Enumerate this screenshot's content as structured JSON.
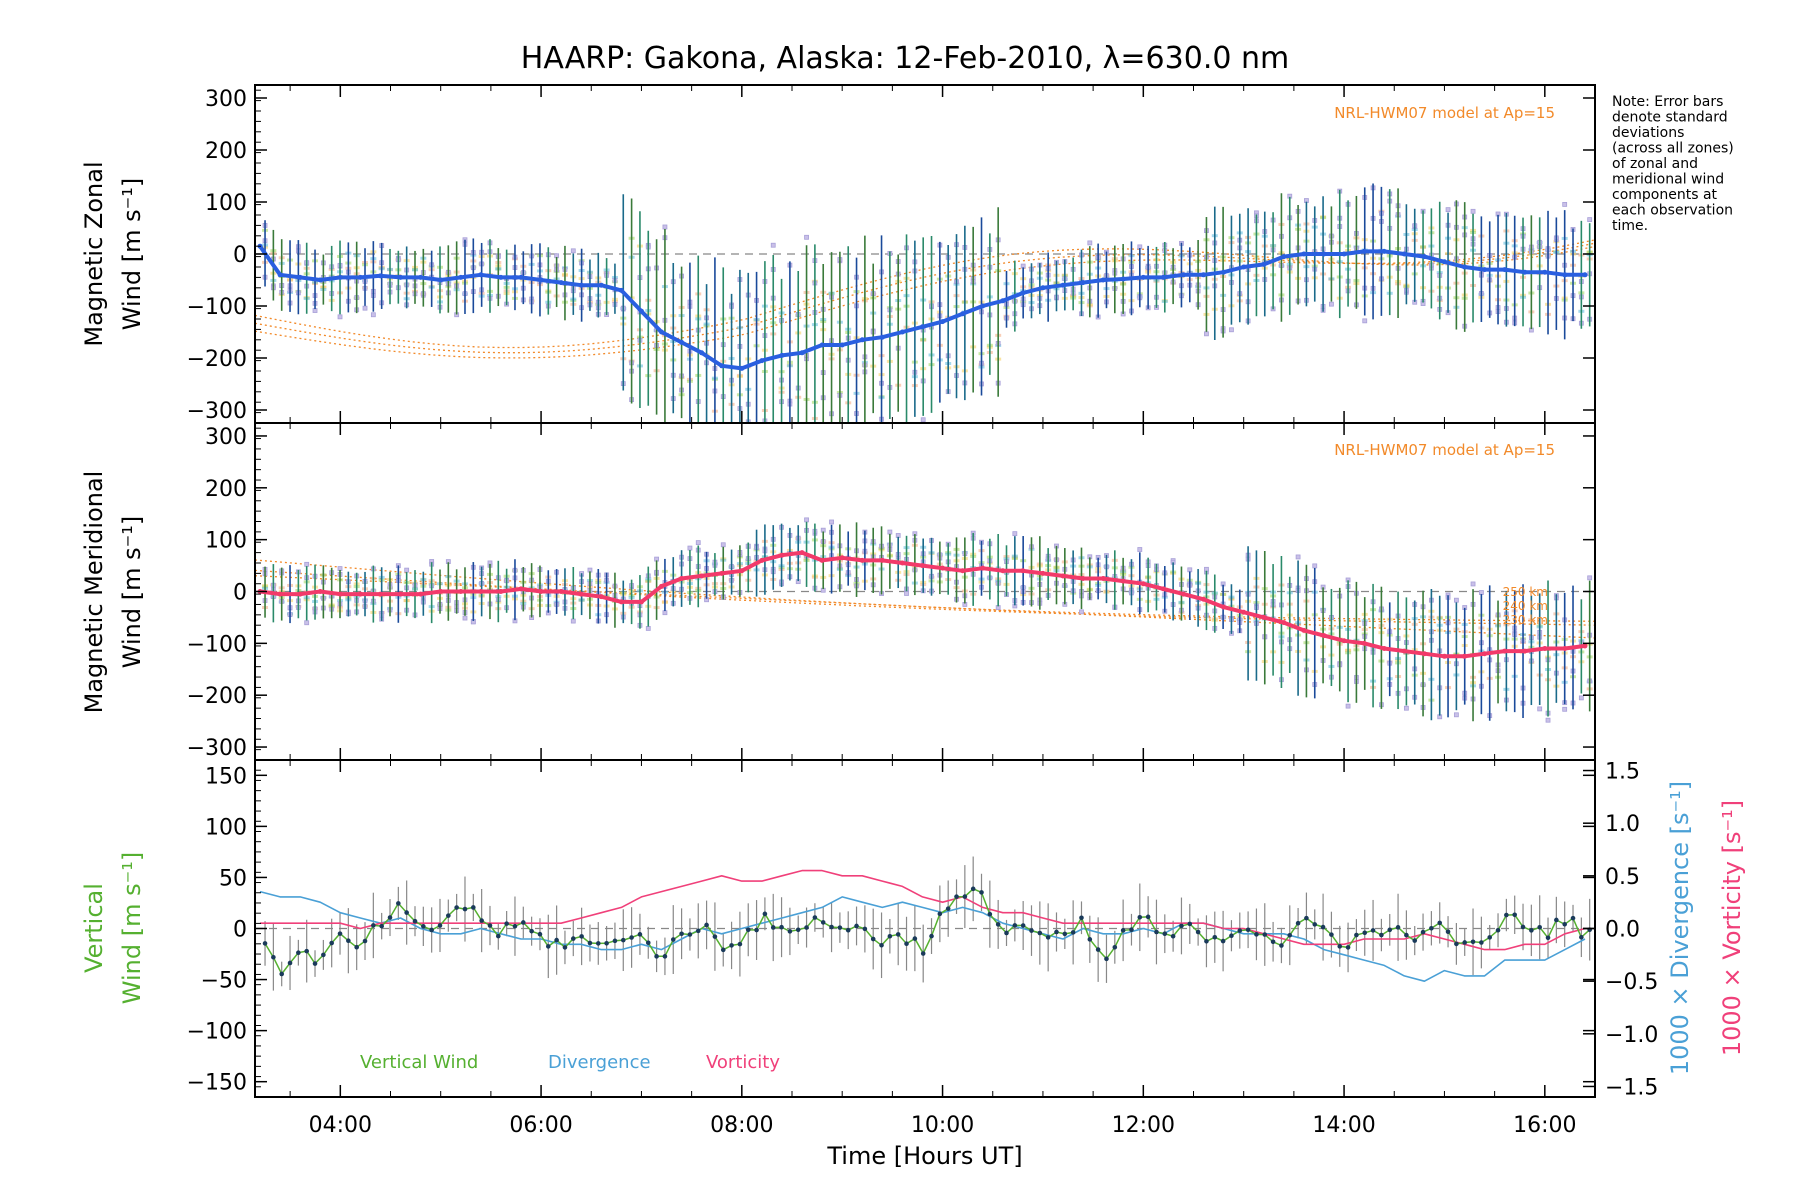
{
  "colors": {
    "zonal_line": "#2a5fe0",
    "meridional_line": "#f23a6a",
    "model": "#f28a2a",
    "scatter": "#9a9ae0",
    "error_bar": "#1a5a7a",
    "vertical": "#55b030",
    "divergence": "#4aa0d6",
    "vorticity": "#f0407a",
    "bg_point_fill": "#c9c0e8",
    "bg_point_stroke": "#a8a0d8"
  },
  "chart_data": [
    {
      "type": "line",
      "title": "HAARP: Gakona,  Alaska: 12-Feb-2010, λ=630.0 nm",
      "ylabel_line1": "Magnetic Zonal",
      "ylabel_line2": "Wind [m s⁻¹]",
      "ylim": [
        -325,
        325
      ],
      "xlim": [
        3.15,
        16.5
      ],
      "yticks": [
        "300",
        "200",
        "100",
        "0",
        "−100",
        "−200",
        "−300"
      ],
      "model_label": "NRL-HWM07 model at Ap=15",
      "note": [
        "Note: Error bars",
        "denote standard",
        "deviations",
        "(across all zones)",
        "of zonal and",
        "meridional wind",
        "components at",
        "each observation",
        "time."
      ],
      "series": [
        {
          "x": [
            3.2,
            3.4,
            3.6,
            3.8,
            4.0,
            4.2,
            4.4,
            4.6,
            4.8,
            5.0,
            5.2,
            5.4,
            5.6,
            5.8,
            6.0,
            6.2,
            6.4,
            6.6,
            6.8,
            7.0,
            7.2,
            7.4,
            7.6,
            7.8,
            8.0,
            8.2,
            8.4,
            8.6,
            8.8,
            9.0,
            9.2,
            9.4,
            9.6,
            9.8,
            10.0,
            10.2,
            10.4,
            10.6,
            10.8,
            11.0,
            11.2,
            11.4,
            11.6,
            11.8,
            12.0,
            12.2,
            12.4,
            12.6,
            12.8,
            13.0,
            13.2,
            13.4,
            13.6,
            13.8,
            14.0,
            14.2,
            14.4,
            14.6,
            14.8,
            15.0,
            15.2,
            15.4,
            15.6,
            15.8,
            16.0,
            16.2,
            16.4
          ],
          "y": [
            15,
            -40,
            -45,
            -50,
            -45,
            -45,
            -42,
            -45,
            -45,
            -50,
            -45,
            -40,
            -45,
            -45,
            -50,
            -55,
            -60,
            -60,
            -70,
            -110,
            -150,
            -170,
            -190,
            -215,
            -220,
            -205,
            -195,
            -190,
            -175,
            -175,
            -165,
            -160,
            -150,
            -140,
            -130,
            -115,
            -100,
            -90,
            -75,
            -65,
            -60,
            -55,
            -50,
            -48,
            -45,
            -45,
            -40,
            -40,
            -35,
            -25,
            -20,
            -5,
            0,
            0,
            0,
            5,
            5,
            0,
            -5,
            -15,
            -25,
            -30,
            -30,
            -35,
            -35,
            -40,
            -40
          ]
        }
      ]
    },
    {
      "type": "line",
      "ylabel_line1": "Magnetic Meridional",
      "ylabel_line2": "Wind [m s⁻¹]",
      "ylim": [
        -325,
        325
      ],
      "xlim": [
        3.15,
        16.5
      ],
      "yticks": [
        "300",
        "200",
        "100",
        "0",
        "−100",
        "−200",
        "−300"
      ],
      "model_label": "NRL-HWM07 model at Ap=15",
      "model_alt_labels": [
        "250 km",
        "240 km",
        "230 km"
      ],
      "series": [
        {
          "x": [
            3.2,
            3.4,
            3.6,
            3.8,
            4.0,
            4.2,
            4.4,
            4.6,
            4.8,
            5.0,
            5.2,
            5.4,
            5.6,
            5.8,
            6.0,
            6.2,
            6.4,
            6.6,
            6.8,
            7.0,
            7.2,
            7.4,
            7.6,
            7.8,
            8.0,
            8.2,
            8.4,
            8.6,
            8.8,
            9.0,
            9.2,
            9.4,
            9.6,
            9.8,
            10.0,
            10.2,
            10.4,
            10.6,
            10.8,
            11.0,
            11.2,
            11.4,
            11.6,
            11.8,
            12.0,
            12.2,
            12.4,
            12.6,
            12.8,
            13.0,
            13.2,
            13.4,
            13.6,
            13.8,
            14.0,
            14.2,
            14.4,
            14.6,
            14.8,
            15.0,
            15.2,
            15.4,
            15.6,
            15.8,
            16.0,
            16.2,
            16.4
          ],
          "y": [
            0,
            -5,
            -5,
            0,
            -5,
            -5,
            -5,
            -5,
            -5,
            0,
            0,
            0,
            0,
            5,
            0,
            0,
            -5,
            -10,
            -20,
            -20,
            10,
            25,
            30,
            35,
            40,
            60,
            70,
            75,
            60,
            65,
            60,
            60,
            55,
            50,
            45,
            40,
            45,
            40,
            40,
            35,
            30,
            25,
            25,
            20,
            15,
            5,
            -5,
            -15,
            -30,
            -40,
            -50,
            -60,
            -75,
            -85,
            -95,
            -100,
            -110,
            -115,
            -120,
            -125,
            -125,
            -120,
            -115,
            -115,
            -110,
            -110,
            -105
          ]
        }
      ]
    },
    {
      "type": "line",
      "ylabel_left_line1": "Vertical",
      "ylabel_left_line2": "Wind [m s⁻¹]",
      "ylabel_right_div": "1000 × Divergence [s⁻¹]",
      "ylabel_right_vort": "1000 × Vorticity [s⁻¹]",
      "ylim": [
        -165,
        165
      ],
      "ylim_right": [
        -1.6,
        1.6
      ],
      "xlim": [
        3.15,
        16.5
      ],
      "yticks": [
        "150",
        "100",
        "50",
        "0",
        "−50",
        "−100",
        "−150"
      ],
      "yticks_right": [
        "1.5",
        "1.0",
        "0.5",
        "0.0",
        "−0.5",
        "−1.0",
        "−1.5"
      ],
      "xticks": [
        "04:00",
        "06:00",
        "08:00",
        "10:00",
        "12:00",
        "14:00",
        "16:00"
      ],
      "xlabel": "Time [Hours UT]",
      "legend": [
        "Vertical Wind",
        "Divergence",
        "Vorticity"
      ],
      "series": [
        {
          "name": "Vertical Wind",
          "x": [
            3.2,
            3.4,
            3.6,
            3.8,
            4.0,
            4.2,
            4.4,
            4.6,
            4.8,
            5.0,
            5.2,
            5.4,
            5.6,
            5.8,
            6.0,
            6.2,
            6.4,
            6.6,
            6.8,
            7.0,
            7.2,
            7.4,
            7.6,
            7.8,
            8.0,
            8.2,
            8.4,
            8.6,
            8.8,
            9.0,
            9.2,
            9.4,
            9.6,
            9.8,
            10.0,
            10.2,
            10.4,
            10.6,
            10.8,
            11.0,
            11.2,
            11.4,
            11.6,
            11.8,
            12.0,
            12.2,
            12.4,
            12.6,
            12.8,
            13.0,
            13.2,
            13.4,
            13.6,
            13.8,
            14.0,
            14.2,
            14.4,
            14.6,
            14.8,
            15.0,
            15.2,
            15.4,
            15.6,
            15.8,
            16.0,
            16.2,
            16.4
          ],
          "y": [
            0,
            -40,
            -25,
            -30,
            -10,
            -20,
            5,
            20,
            -5,
            5,
            25,
            10,
            -5,
            5,
            -10,
            -15,
            -10,
            -20,
            -5,
            -10,
            -25,
            -10,
            5,
            -15,
            -10,
            10,
            -5,
            5,
            10,
            -5,
            5,
            -15,
            -5,
            -20,
            15,
            30,
            35,
            -5,
            5,
            -10,
            -10,
            5,
            -35,
            -5,
            10,
            -10,
            0,
            -5,
            -10,
            5,
            -5,
            -15,
            5,
            0,
            -15,
            -5,
            -5,
            0,
            -10,
            5,
            -20,
            -15,
            10,
            5,
            -5,
            10,
            -5
          ]
        },
        {
          "name": "Divergence",
          "x": [
            3.2,
            3.4,
            3.6,
            3.8,
            4.0,
            4.2,
            4.4,
            4.6,
            4.8,
            5.0,
            5.2,
            5.4,
            5.6,
            5.8,
            6.0,
            6.2,
            6.4,
            6.6,
            6.8,
            7.0,
            7.2,
            7.4,
            7.6,
            7.8,
            8.0,
            8.2,
            8.4,
            8.6,
            8.8,
            9.0,
            9.2,
            9.4,
            9.6,
            9.8,
            10.0,
            10.2,
            10.4,
            10.6,
            10.8,
            11.0,
            11.2,
            11.4,
            11.6,
            11.8,
            12.0,
            12.2,
            12.4,
            12.6,
            12.8,
            13.0,
            13.2,
            13.4,
            13.6,
            13.8,
            14.0,
            14.2,
            14.4,
            14.6,
            14.8,
            15.0,
            15.2,
            15.4,
            15.6,
            15.8,
            16.0,
            16.2,
            16.4
          ],
          "y": [
            0.35,
            0.3,
            0.3,
            0.25,
            0.15,
            0.1,
            0.05,
            0.1,
            0.0,
            -0.05,
            -0.05,
            0.0,
            -0.05,
            -0.1,
            -0.1,
            -0.15,
            -0.15,
            -0.2,
            -0.2,
            -0.15,
            -0.2,
            -0.1,
            0.0,
            -0.05,
            0.0,
            0.05,
            0.1,
            0.15,
            0.2,
            0.3,
            0.25,
            0.2,
            0.25,
            0.2,
            0.15,
            0.2,
            0.15,
            0.05,
            0.0,
            -0.05,
            -0.1,
            0.0,
            -0.05,
            -0.05,
            0.0,
            -0.05,
            0.05,
            0.05,
            0.0,
            -0.05,
            -0.05,
            -0.05,
            -0.1,
            -0.2,
            -0.25,
            -0.3,
            -0.35,
            -0.45,
            -0.5,
            -0.4,
            -0.45,
            -0.45,
            -0.3,
            -0.3,
            -0.3,
            -0.2,
            -0.1
          ]
        },
        {
          "name": "Vorticity",
          "x": [
            3.2,
            3.4,
            3.6,
            3.8,
            4.0,
            4.2,
            4.4,
            4.6,
            4.8,
            5.0,
            5.2,
            5.4,
            5.6,
            5.8,
            6.0,
            6.2,
            6.4,
            6.6,
            6.8,
            7.0,
            7.2,
            7.4,
            7.6,
            7.8,
            8.0,
            8.2,
            8.4,
            8.6,
            8.8,
            9.0,
            9.2,
            9.4,
            9.6,
            9.8,
            10.0,
            10.2,
            10.4,
            10.6,
            10.8,
            11.0,
            11.2,
            11.4,
            11.6,
            11.8,
            12.0,
            12.2,
            12.4,
            12.6,
            12.8,
            13.0,
            13.2,
            13.4,
            13.6,
            13.8,
            14.0,
            14.2,
            14.4,
            14.6,
            14.8,
            15.0,
            15.2,
            15.4,
            15.6,
            15.8,
            16.0,
            16.2,
            16.4
          ],
          "y": [
            0.05,
            0.05,
            0.05,
            0.05,
            0.05,
            0.0,
            0.05,
            0.05,
            0.05,
            0.05,
            0.05,
            0.05,
            0.05,
            0.05,
            0.05,
            0.05,
            0.1,
            0.15,
            0.2,
            0.3,
            0.35,
            0.4,
            0.45,
            0.5,
            0.45,
            0.45,
            0.5,
            0.55,
            0.55,
            0.5,
            0.5,
            0.45,
            0.4,
            0.3,
            0.25,
            0.3,
            0.2,
            0.15,
            0.15,
            0.1,
            0.05,
            0.05,
            0.05,
            0.05,
            0.05,
            0.05,
            0.05,
            0.05,
            0.0,
            0.0,
            -0.05,
            -0.1,
            -0.15,
            -0.15,
            -0.15,
            -0.1,
            -0.1,
            -0.1,
            -0.05,
            -0.1,
            -0.15,
            -0.2,
            -0.2,
            -0.15,
            -0.15,
            -0.05,
            0.0
          ]
        }
      ]
    }
  ]
}
